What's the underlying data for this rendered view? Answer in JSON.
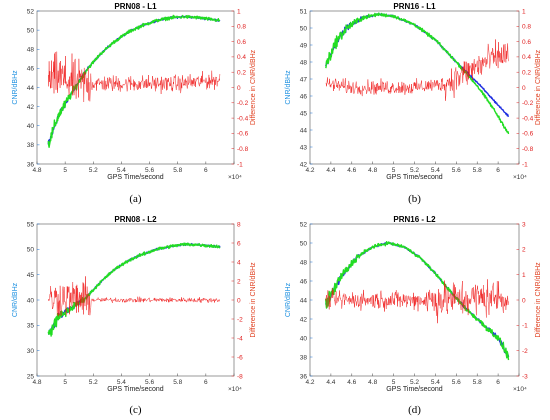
{
  "chart_data": [
    {
      "type": "line",
      "title": "PRN08 - L1",
      "xlabel": "GPS Time/second",
      "ylabel": "CNR/dBHz",
      "ylabel_right": "Difference in CNR/dBHz",
      "x_exponent": "×10⁴",
      "xlim": [
        4.8,
        6.2
      ],
      "ylim_left": [
        36,
        52
      ],
      "ylim_right": [
        -1,
        1
      ],
      "xticks": [
        "4.8",
        "5",
        "5.2",
        "5.4",
        "5.6",
        "5.8",
        "6",
        ""
      ],
      "yticks_left": [
        "36",
        "38",
        "40",
        "42",
        "44",
        "46",
        "48",
        "50",
        "52"
      ],
      "yticks_right": [
        "-1",
        "-0.8",
        "-0.6",
        "-0.4",
        "-0.2",
        "0",
        "0.2",
        "0.4",
        "0.6",
        "0.8",
        "1"
      ],
      "grid": false,
      "caption": "(a)",
      "series": [
        {
          "color": "#2030e0",
          "axis": "left",
          "x": [
            4.88,
            4.95,
            5.05,
            5.15,
            5.25,
            5.35,
            5.45,
            5.55,
            5.65,
            5.75,
            5.85,
            5.95,
            6.1
          ],
          "y": [
            38.0,
            41.0,
            43.5,
            45.8,
            47.5,
            48.8,
            49.8,
            50.5,
            51.0,
            51.3,
            51.4,
            51.3,
            51.0
          ]
        },
        {
          "color": "#22dd22",
          "axis": "left",
          "x": [
            4.88,
            4.95,
            5.05,
            5.15,
            5.25,
            5.35,
            5.45,
            5.55,
            5.65,
            5.75,
            5.85,
            5.95,
            6.1
          ],
          "y": [
            38.0,
            41.0,
            43.5,
            45.8,
            47.5,
            48.8,
            49.8,
            50.5,
            51.0,
            51.3,
            51.4,
            51.3,
            51.0
          ]
        },
        {
          "color": "#ee1111",
          "axis": "right",
          "x": [
            4.88,
            4.95,
            5.0,
            5.1,
            5.2,
            5.4,
            5.6,
            5.8,
            6.1
          ],
          "y": [
            0.1,
            0.15,
            0.1,
            0.05,
            0.05,
            0.05,
            0.05,
            0.05,
            0.1
          ]
        }
      ]
    },
    {
      "type": "line",
      "title": "PRN16 - L1",
      "xlabel": "GPS Time/second",
      "ylabel": "CNR/dBHz",
      "ylabel_right": "Difference in CNR/dBHz",
      "x_exponent": "×10⁴",
      "xlim": [
        4.2,
        6.2
      ],
      "ylim_left": [
        42,
        51
      ],
      "ylim_right": [
        -1,
        1
      ],
      "xticks": [
        "4.2",
        "4.4",
        "4.6",
        "4.8",
        "5",
        "5.2",
        "5.4",
        "5.6",
        "5.8",
        "6",
        ""
      ],
      "yticks_left": [
        "42",
        "43",
        "44",
        "45",
        "46",
        "47",
        "48",
        "49",
        "50",
        "51"
      ],
      "yticks_right": [
        "-1",
        "-0.8",
        "-0.6",
        "-0.4",
        "-0.2",
        "0",
        "0.2",
        "0.4",
        "0.6",
        "0.8",
        "1"
      ],
      "grid": false,
      "caption": "(b)",
      "series": [
        {
          "color": "#2030e0",
          "axis": "left",
          "x": [
            4.35,
            4.45,
            4.55,
            4.7,
            4.85,
            5.0,
            5.2,
            5.4,
            5.6,
            5.8,
            5.95,
            6.1
          ],
          "y": [
            47.8,
            49.2,
            50.0,
            50.6,
            50.8,
            50.7,
            50.2,
            49.3,
            48.0,
            46.8,
            45.8,
            44.8
          ]
        },
        {
          "color": "#22dd22",
          "axis": "left",
          "x": [
            4.35,
            4.45,
            4.55,
            4.7,
            4.85,
            5.0,
            5.2,
            5.4,
            5.6,
            5.8,
            5.95,
            6.1
          ],
          "y": [
            47.8,
            49.2,
            50.0,
            50.6,
            50.8,
            50.7,
            50.2,
            49.3,
            48.0,
            46.6,
            45.3,
            43.8
          ]
        },
        {
          "color": "#ee1111",
          "axis": "right",
          "x": [
            4.35,
            4.6,
            4.9,
            5.2,
            5.5,
            5.7,
            5.9,
            6.1
          ],
          "y": [
            0.05,
            0.0,
            0.0,
            0.0,
            0.05,
            0.2,
            0.35,
            0.45
          ]
        }
      ]
    },
    {
      "type": "line",
      "title": "PRN08 - L2",
      "xlabel": "GPS Time/second",
      "ylabel": "CNR/dBHz",
      "ylabel_right": "Difference in CNR/dBHz",
      "x_exponent": "×10⁴",
      "xlim": [
        4.8,
        6.2
      ],
      "ylim_left": [
        25,
        55
      ],
      "ylim_right": [
        -8,
        8
      ],
      "xticks": [
        "4.8",
        "5",
        "5.2",
        "5.4",
        "5.6",
        "5.8",
        "6",
        ""
      ],
      "yticks_left": [
        "25",
        "30",
        "35",
        "40",
        "45",
        "50",
        "55"
      ],
      "yticks_right": [
        "-8",
        "-6",
        "-4",
        "-2",
        "0",
        "2",
        "4",
        "6",
        "8"
      ],
      "grid": false,
      "caption": "(c)",
      "series": [
        {
          "color": "#2030e0",
          "axis": "left",
          "x": [
            4.88,
            4.95,
            5.05,
            5.15,
            5.25,
            5.35,
            5.45,
            5.55,
            5.65,
            5.75,
            5.85,
            5.95,
            6.1
          ],
          "y": [
            33.0,
            36.5,
            38.5,
            40.5,
            43.5,
            46.0,
            47.8,
            49.0,
            50.0,
            50.6,
            51.0,
            50.9,
            50.5
          ]
        },
        {
          "color": "#22dd22",
          "axis": "left",
          "x": [
            4.88,
            4.95,
            5.05,
            5.15,
            5.25,
            5.35,
            5.45,
            5.55,
            5.65,
            5.75,
            5.85,
            5.95,
            6.1
          ],
          "y": [
            33.0,
            36.5,
            38.5,
            40.5,
            43.5,
            46.0,
            47.8,
            49.0,
            50.0,
            50.6,
            51.0,
            50.9,
            50.5
          ]
        },
        {
          "color": "#ee1111",
          "axis": "right",
          "x": [
            4.88,
            4.95,
            5.0,
            5.1,
            5.2,
            5.4,
            5.6,
            5.8,
            6.1
          ],
          "y": [
            0.0,
            0.2,
            0.2,
            0.1,
            0.0,
            0.0,
            0.0,
            0.0,
            0.0
          ]
        }
      ]
    },
    {
      "type": "line",
      "title": "PRN16 - L2",
      "xlabel": "GPS Time/second",
      "ylabel": "CNR/dBHz",
      "ylabel_right": "Difference in CNR/dBHz",
      "x_exponent": "×10⁴",
      "xlim": [
        4.2,
        6.2
      ],
      "ylim_left": [
        36,
        52
      ],
      "ylim_right": [
        -3,
        3
      ],
      "xticks": [
        "4.2",
        "4.4",
        "4.6",
        "4.8",
        "5",
        "5.2",
        "5.4",
        "5.6",
        "5.8",
        "6",
        ""
      ],
      "yticks_left": [
        "36",
        "38",
        "40",
        "42",
        "44",
        "46",
        "48",
        "50",
        "52"
      ],
      "yticks_right": [
        "-3",
        "-2",
        "-1",
        "0",
        "1",
        "2",
        "3"
      ],
      "grid": false,
      "caption": "(d)",
      "series": [
        {
          "color": "#2030e0",
          "axis": "left",
          "x": [
            4.35,
            4.5,
            4.65,
            4.8,
            4.95,
            5.1,
            5.25,
            5.4,
            5.55,
            5.7,
            5.85,
            6.0,
            6.1
          ],
          "y": [
            43.5,
            46.5,
            48.5,
            49.6,
            50.0,
            49.6,
            48.5,
            46.8,
            44.8,
            43.0,
            41.5,
            40.0,
            38.0
          ]
        },
        {
          "color": "#22dd22",
          "axis": "left",
          "x": [
            4.35,
            4.5,
            4.65,
            4.8,
            4.95,
            5.1,
            5.25,
            5.4,
            5.55,
            5.7,
            5.85,
            6.0,
            6.1
          ],
          "y": [
            43.5,
            46.5,
            48.5,
            49.6,
            50.0,
            49.6,
            48.5,
            46.8,
            44.8,
            43.0,
            41.5,
            40.0,
            38.0
          ]
        },
        {
          "color": "#ee1111",
          "axis": "right",
          "x": [
            4.35,
            4.6,
            4.9,
            5.2,
            5.5,
            5.7,
            5.9,
            6.1
          ],
          "y": [
            0.0,
            0.0,
            0.0,
            0.0,
            0.0,
            0.05,
            0.1,
            0.1
          ]
        }
      ]
    }
  ]
}
